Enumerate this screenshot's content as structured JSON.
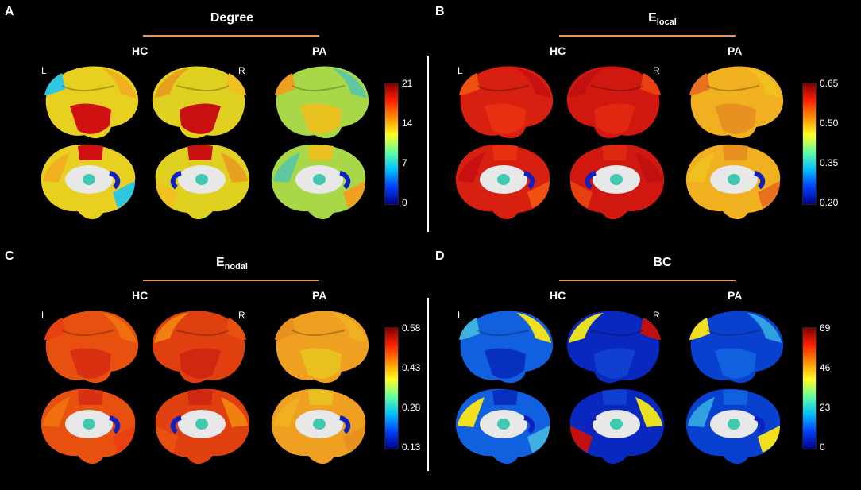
{
  "groups": {
    "hc": "HC",
    "pa": "PA"
  },
  "hemispheres": {
    "left": "L",
    "right": "R"
  },
  "panels": [
    {
      "letter": "A",
      "title": "Degree",
      "sub": "",
      "ticks": [
        "21",
        "14",
        "7",
        "0"
      ],
      "gradient": "jet",
      "colors": {
        "hcL": [
          "#e8d020",
          "#d01010",
          "#f0b020",
          "#30c8e0"
        ],
        "hcR": [
          "#e0d020",
          "#c81010",
          "#e8a020",
          "#f0c020"
        ],
        "pa": [
          "#a8d848",
          "#e8c020",
          "#60c8a0",
          "#f0a020"
        ]
      }
    },
    {
      "letter": "B",
      "title": "E",
      "sub": "local",
      "ticks": [
        "0.65",
        "0.50",
        "0.35",
        "0.20"
      ],
      "gradient": "jet",
      "colors": {
        "hcL": [
          "#d82010",
          "#e83010",
          "#c81010",
          "#f05010"
        ],
        "hcR": [
          "#d01810",
          "#e02810",
          "#c01010",
          "#e84010"
        ],
        "pa": [
          "#f0b020",
          "#e89020",
          "#f0c020",
          "#e87020"
        ]
      }
    },
    {
      "letter": "C",
      "title": "E",
      "sub": "nodal",
      "ticks": [
        "0.58",
        "0.43",
        "0.28",
        "0.13"
      ],
      "gradient": "jet",
      "colors": {
        "hcL": [
          "#e85010",
          "#d83010",
          "#f07010",
          "#e84010"
        ],
        "hcR": [
          "#e04010",
          "#d02810",
          "#f08010",
          "#e85010"
        ],
        "pa": [
          "#f0a020",
          "#e8c020",
          "#f0b020",
          "#e89020"
        ]
      }
    },
    {
      "letter": "D",
      "title": "BC",
      "sub": "",
      "ticks": [
        "69",
        "46",
        "23",
        "0"
      ],
      "gradient": "jet",
      "colors": {
        "hcL": [
          "#1060e0",
          "#0830c0",
          "#f0e020",
          "#40b0e0"
        ],
        "hcR": [
          "#0828c0",
          "#1040d0",
          "#e8e020",
          "#c01010"
        ],
        "pa": [
          "#0840d0",
          "#1060e0",
          "#30a0e0",
          "#f0e020"
        ]
      }
    }
  ]
}
